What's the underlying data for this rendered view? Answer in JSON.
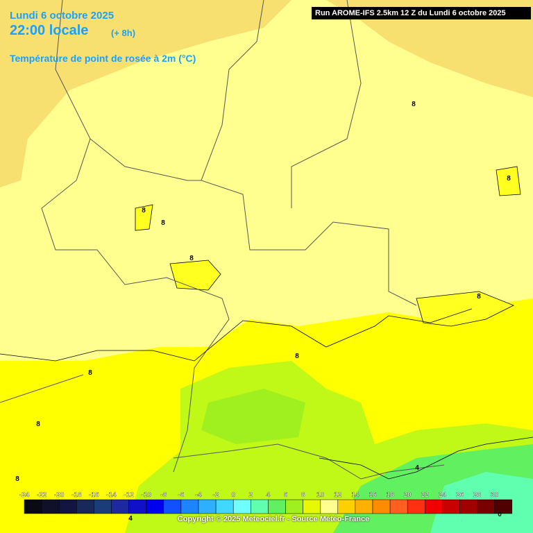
{
  "header": {
    "date": "Lundi 6 octobre 2025",
    "time": "22:00 locale",
    "offset": "(+ 8h)",
    "parameter": "Température de point de rosée à 2m (°C)",
    "run": "Run AROME-IFS 2.5km 12 Z du Lundi 6 octobre 2025"
  },
  "legend": {
    "ticks": [
      -24,
      -22,
      -20,
      -18,
      -16,
      -14,
      -12,
      -10,
      -8,
      -6,
      -4,
      -2,
      0,
      2,
      4,
      6,
      8,
      10,
      12,
      14,
      16,
      18,
      20,
      22,
      24,
      26,
      28,
      30
    ],
    "colors": [
      "#0a0a14",
      "#10102a",
      "#141440",
      "#182858",
      "#1a3c78",
      "#1e28a0",
      "#1010c8",
      "#0000f0",
      "#1050ff",
      "#1c84ff",
      "#2cb0ff",
      "#40d8ff",
      "#70ffff",
      "#60ffb0",
      "#60f060",
      "#a0f020",
      "#e8f800",
      "#ffff90",
      "#ffd000",
      "#ffb000",
      "#ff8c00",
      "#ff6020",
      "#ff3010",
      "#f00000",
      "#c80000",
      "#a00000",
      "#780000",
      "#500000"
    ]
  },
  "contour_labels": [
    "8",
    "8",
    "8",
    "8",
    "8",
    "8",
    "8",
    "8",
    "8",
    "8",
    "4",
    "4",
    "0"
  ],
  "footer": {
    "copyright": "Copyright © 2025 Meteociel.fr - Source Météo-France"
  }
}
